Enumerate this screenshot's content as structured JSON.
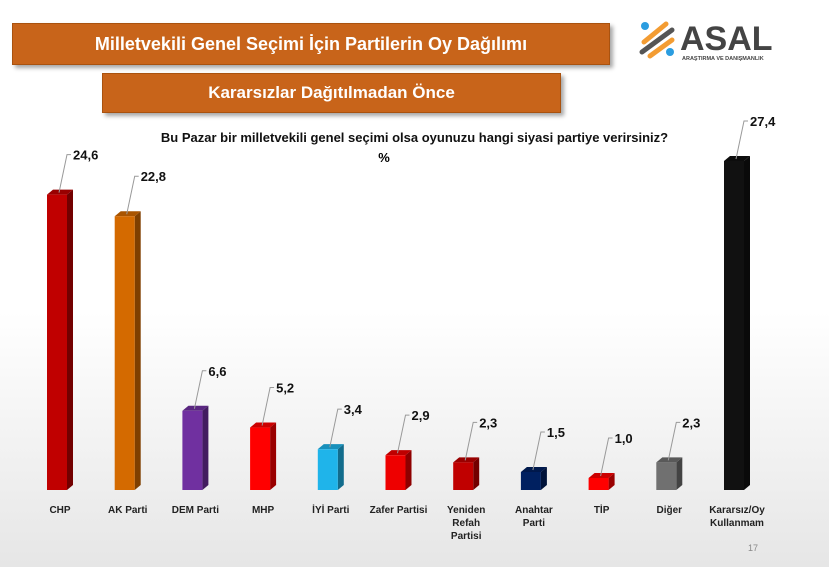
{
  "title": "Milletvekili Genel Seçimi İçin Partilerin Oy Dağılımı",
  "subtitle": "Kararsızlar Dağıtılmadan Önce",
  "logo": {
    "name": "ASAL",
    "tagline": "ARAŞTIRMA VE DANIŞMANLIK"
  },
  "page_number": "17",
  "chart_data": {
    "type": "bar",
    "title": "Bu Pazar bir milletvekili genel seçimi olsa oyunuzu hangi siyasi partiye verirsiniz?",
    "unit": "%",
    "categories": [
      "CHP",
      "AK Parti",
      "DEM Parti",
      "MHP",
      "İYİ Parti",
      "Zafer Partisi",
      "Yeniden Refah Partisi",
      "Anahtar Parti",
      "TİP",
      "Diğer",
      "Kararsız/Oy Kullanmam"
    ],
    "category_lines": [
      [
        "CHP"
      ],
      [
        "AK Parti"
      ],
      [
        "DEM Parti"
      ],
      [
        "MHP"
      ],
      [
        "İYİ Parti"
      ],
      [
        "Zafer Partisi"
      ],
      [
        "Yeniden",
        "Refah",
        "Partisi"
      ],
      [
        "Anahtar",
        "Parti"
      ],
      [
        "TİP"
      ],
      [
        "Diğer"
      ],
      [
        "Kararsız/Oy",
        "Kullanmam"
      ]
    ],
    "values": [
      24.6,
      22.8,
      6.6,
      5.2,
      3.4,
      2.9,
      2.3,
      1.5,
      1.0,
      2.3,
      27.4
    ],
    "labels": [
      "24,6",
      "22,8",
      "6,6",
      "5,2",
      "3,4",
      "2,9",
      "2,3",
      "1,5",
      "1,0",
      "2,3",
      "27,4"
    ],
    "colors": [
      "#c00000",
      "#d46a00",
      "#7030a0",
      "#ff0000",
      "#1fb4ea",
      "#ee0000",
      "#c00000",
      "#002060",
      "#ff0000",
      "#707070",
      "#111111"
    ],
    "ylim": [
      0,
      27.4
    ],
    "grid": false
  }
}
